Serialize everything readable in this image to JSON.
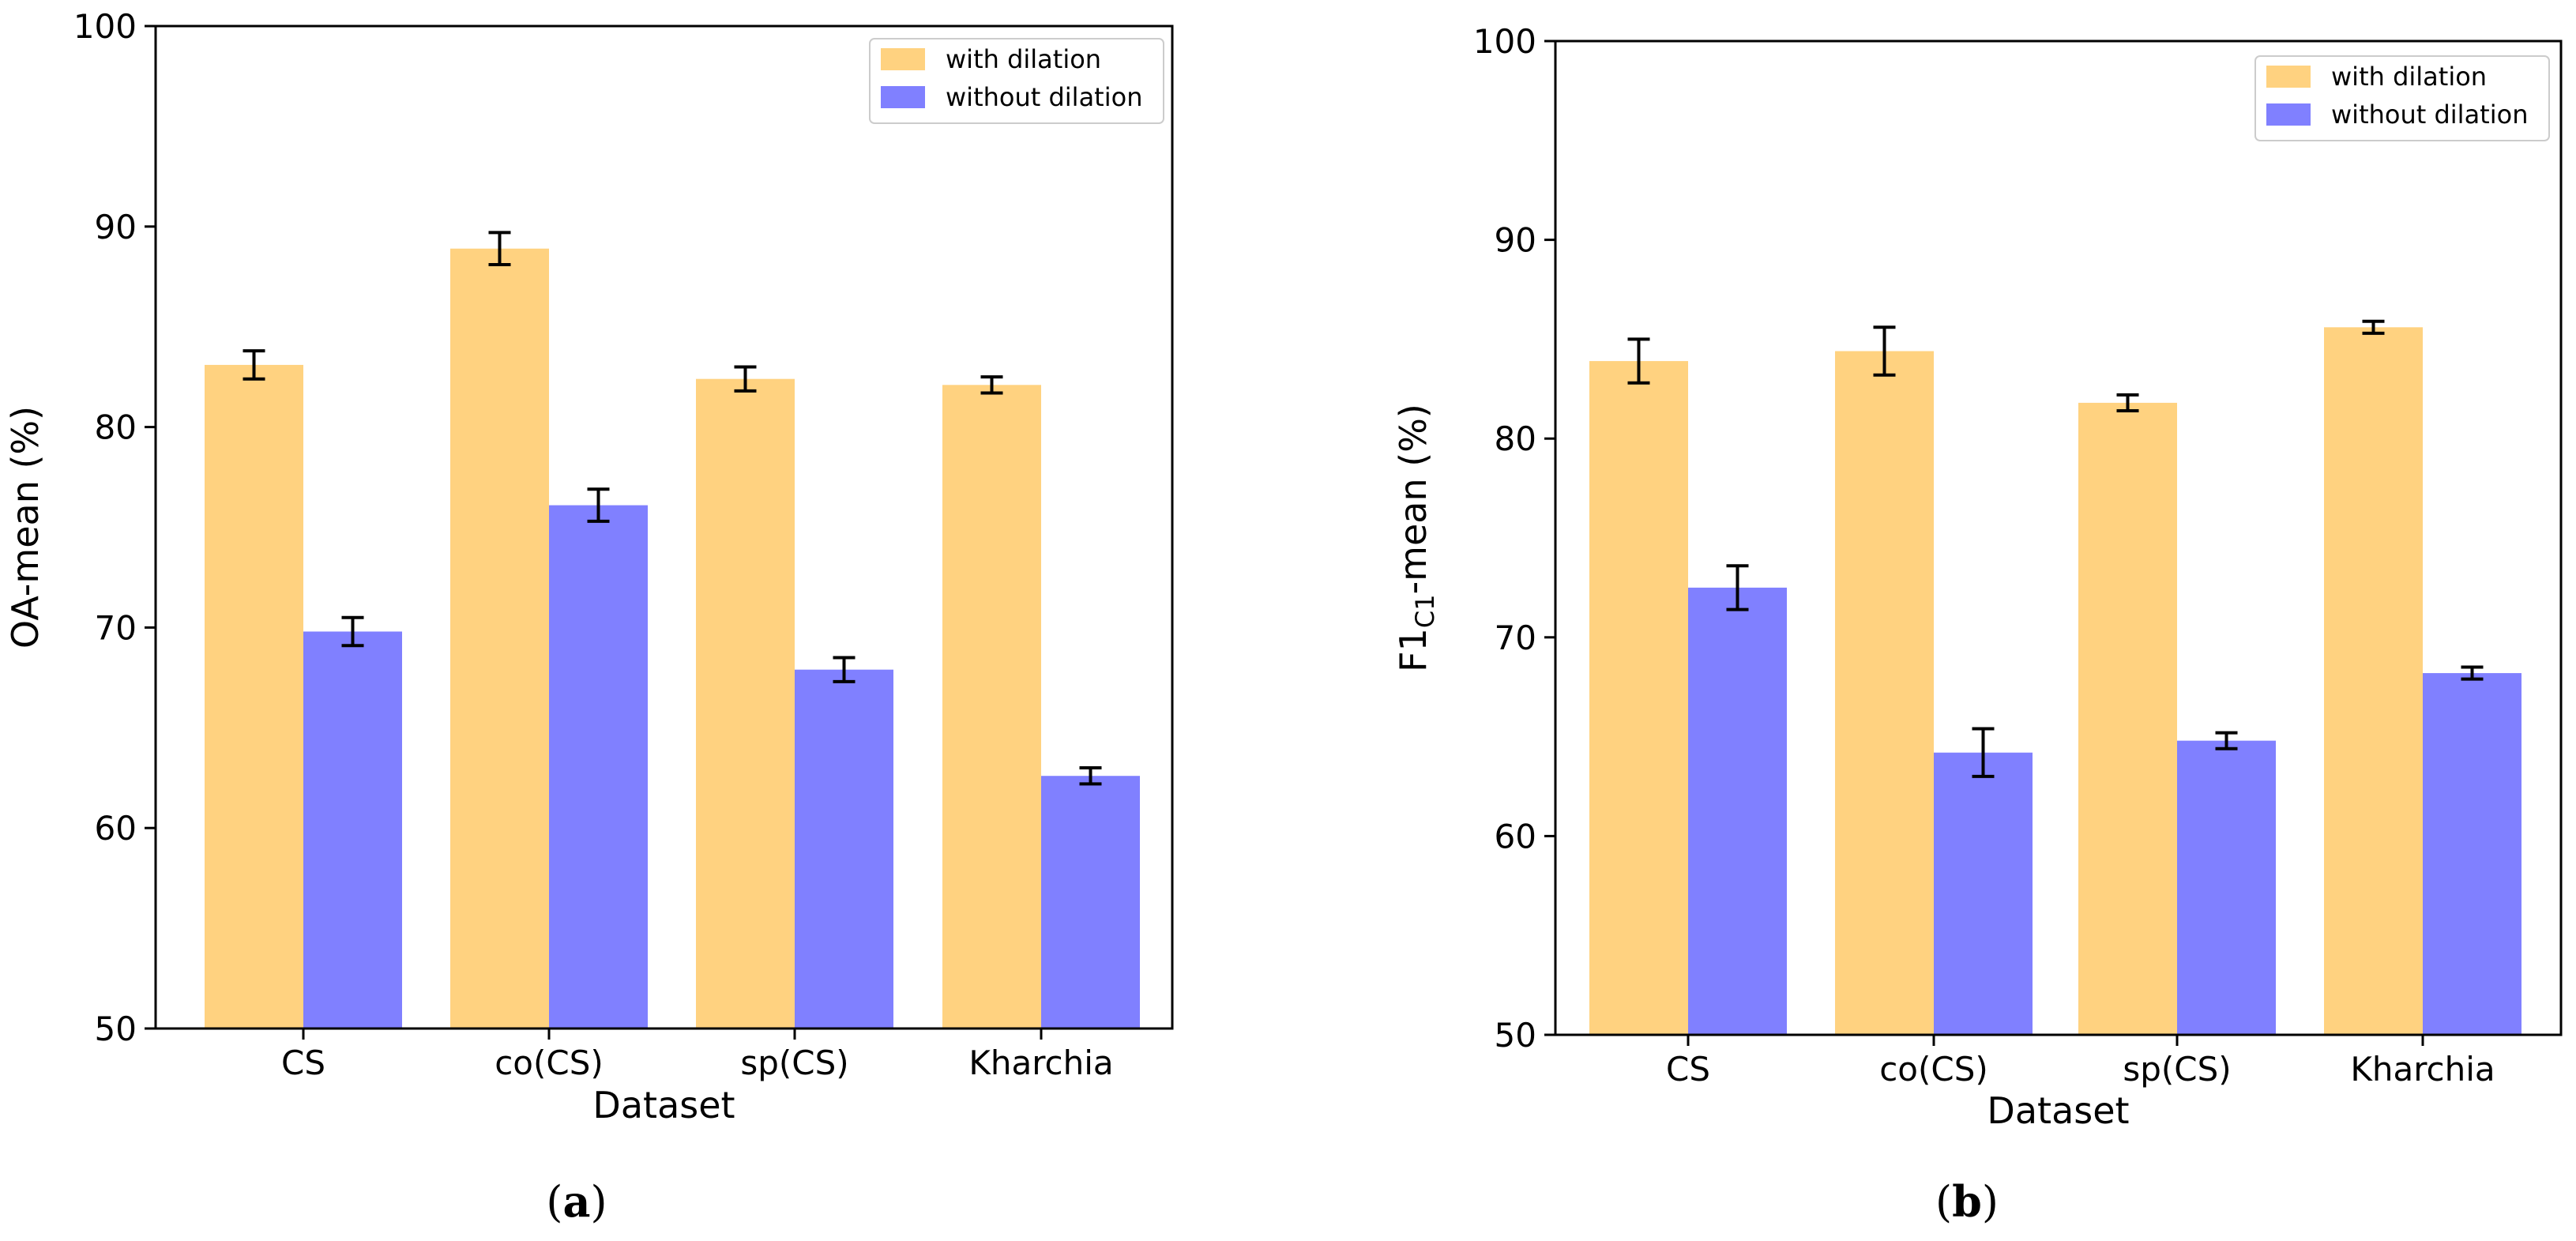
{
  "colors": {
    "with_dilation": "#ffd280",
    "without_dilation": "#8080ff",
    "error_bar": "#000000"
  },
  "chart_data": [
    {
      "panel_label_open": "(",
      "panel_label_letter": "a",
      "panel_label_close": ")",
      "type": "bar",
      "xlabel": "Dataset",
      "ylabel": "OA-mean (%)",
      "ylabel_sub": "",
      "ylabel_rest": "",
      "ylim": [
        50,
        100
      ],
      "yticks": [
        50,
        60,
        70,
        80,
        90,
        100
      ],
      "categories": [
        "CS",
        "co(CS)",
        "sp(CS)",
        "Kharchia"
      ],
      "legend_position": "top-right",
      "series": [
        {
          "name": "with dilation",
          "values": [
            83.1,
            88.9,
            82.4,
            82.1
          ],
          "errors": [
            0.7,
            0.8,
            0.6,
            0.4
          ]
        },
        {
          "name": "without dilation",
          "values": [
            69.8,
            76.1,
            67.9,
            62.6
          ],
          "errors": [
            0.7,
            0.8,
            0.6,
            0.4
          ]
        }
      ]
    },
    {
      "panel_label_open": "(",
      "panel_label_letter": "b",
      "panel_label_close": ")",
      "type": "bar",
      "xlabel": "Dataset",
      "ylabel": "F1",
      "ylabel_sub": "C1",
      "ylabel_rest": "-mean (%)",
      "ylim": [
        50,
        100
      ],
      "yticks": [
        50,
        60,
        70,
        80,
        90,
        100
      ],
      "categories": [
        "CS",
        "co(CS)",
        "sp(CS)",
        "Kharchia"
      ],
      "legend_position": "top-right",
      "series": [
        {
          "name": "with dilation",
          "values": [
            83.9,
            84.4,
            81.8,
            85.6
          ],
          "errors": [
            1.1,
            1.2,
            0.4,
            0.3
          ]
        },
        {
          "name": "without dilation",
          "values": [
            72.5,
            64.2,
            64.8,
            68.2
          ],
          "errors": [
            1.1,
            1.2,
            0.4,
            0.3
          ]
        }
      ]
    }
  ]
}
